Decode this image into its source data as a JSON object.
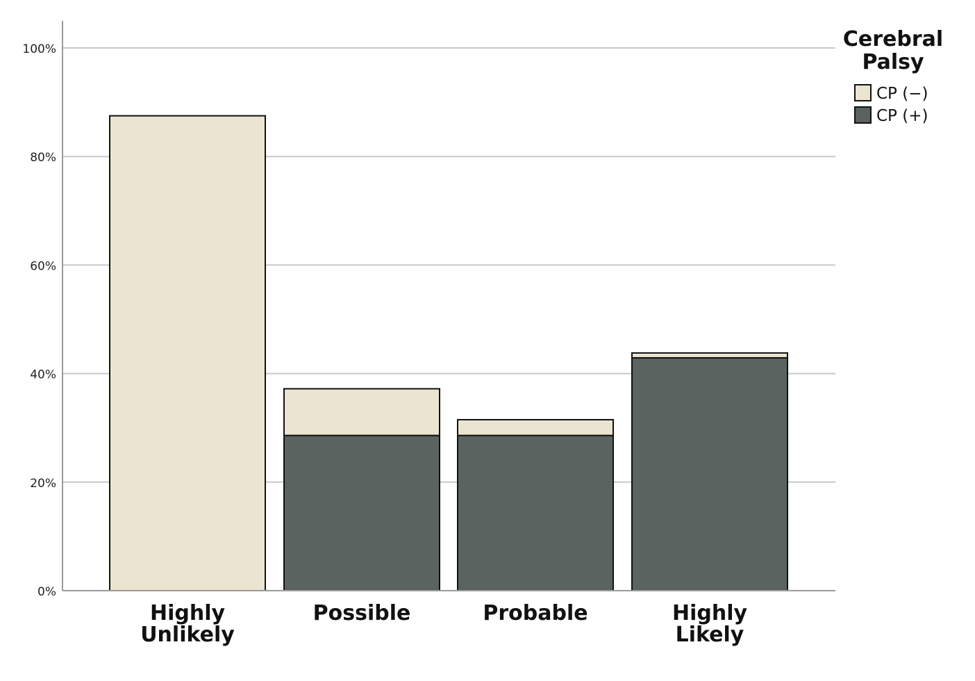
{
  "chart_data": {
    "type": "bar",
    "stacked": true,
    "categories": [
      [
        "Highly",
        "Unlikely"
      ],
      [
        "Possible"
      ],
      [
        "Probable"
      ],
      [
        "Highly",
        "Likely"
      ]
    ],
    "series": [
      {
        "name": "CP (+)",
        "color": "#5a635f",
        "values": [
          0,
          28.6,
          28.6,
          42.9
        ]
      },
      {
        "name": "CP (−)",
        "color": "#ebe4d0",
        "values": [
          87.5,
          8.6,
          2.9,
          0.9
        ]
      }
    ],
    "ylim": [
      0,
      105
    ],
    "yticks": [
      0,
      20,
      40,
      60,
      80,
      100
    ],
    "ytick_labels": [
      "0%",
      "20%",
      "40%",
      "60%",
      "80%",
      "100%"
    ],
    "grid": true,
    "legend": {
      "title": [
        "Cerebral",
        "Palsy"
      ],
      "placement": "top-right",
      "entries": [
        {
          "label": "CP (−)",
          "color": "#ebe4d0"
        },
        {
          "label": "CP (+)",
          "color": "#5a635f"
        }
      ]
    }
  }
}
